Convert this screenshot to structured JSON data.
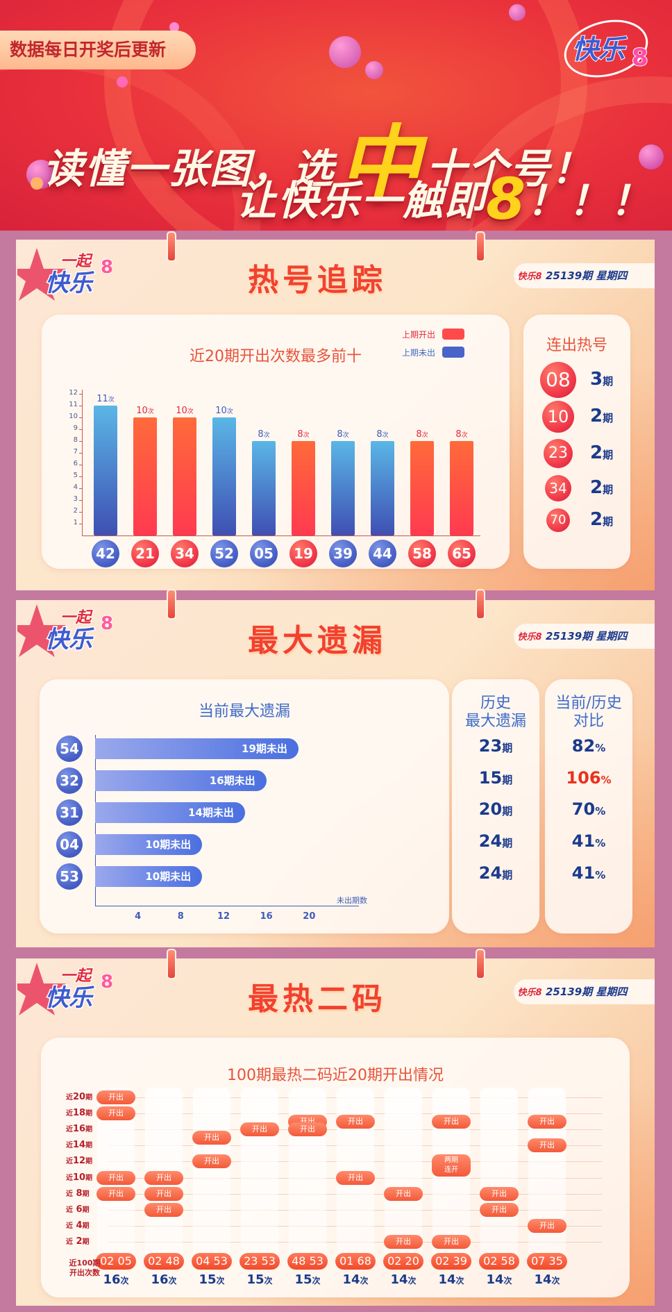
{
  "header": {
    "badge": "数据每日开奖后更新",
    "slogan_line1_pre": "读懂一张图，选",
    "slogan_line1_big": "中",
    "slogan_line1_post": "十个号！",
    "slogan_line2_pre": "让快乐一触即",
    "slogan_line2_big": "8",
    "slogan_line2_post": "！！！",
    "logo_text": "快乐8"
  },
  "logo_small": {
    "line1": "一起",
    "line2": "快乐",
    "digit": "8"
  },
  "issue": {
    "logo_text": "快乐8",
    "text": "25139期  星期四"
  },
  "colors": {
    "accent_red": "#f3412f",
    "navy": "#1b3a8c",
    "last_open": "#ff4a4a",
    "last_not_open": "#4a63c9"
  },
  "hot": {
    "title": "热号追踪",
    "chart_title": "近20期开出次数最多前十",
    "legend": [
      "上期开出",
      "上期未出"
    ],
    "unit": "次",
    "streak_title": "连出热号",
    "streak": [
      {
        "num": "08",
        "value": "3",
        "unit": "期"
      },
      {
        "num": "10",
        "value": "2",
        "unit": "期"
      },
      {
        "num": "23",
        "value": "2",
        "unit": "期"
      },
      {
        "num": "34",
        "value": "2",
        "unit": "期"
      },
      {
        "num": "70",
        "value": "2",
        "unit": "期"
      }
    ]
  },
  "miss": {
    "title": "最大遗漏",
    "chart_title": "当前最大遗漏",
    "x_unit": "未出期数",
    "col1_title": "历史\n最大遗漏",
    "col2_title": "当前/历史\n对比",
    "rows": [
      {
        "num": "54",
        "label": "19期未出",
        "hist": "23",
        "hist_unit": "期",
        "ratio": "82",
        "ratio_unit": "%"
      },
      {
        "num": "32",
        "label": "16期未出",
        "hist": "15",
        "hist_unit": "期",
        "ratio": "106",
        "ratio_unit": "%"
      },
      {
        "num": "31",
        "label": "14期未出",
        "hist": "20",
        "hist_unit": "期",
        "ratio": "70",
        "ratio_unit": "%"
      },
      {
        "num": "04",
        "label": "10期未出",
        "hist": "24",
        "hist_unit": "期",
        "ratio": "41",
        "ratio_unit": "%"
      },
      {
        "num": "53",
        "label": "10期未出",
        "hist": "24",
        "hist_unit": "期",
        "ratio": "41",
        "ratio_unit": "%"
      }
    ]
  },
  "pairs": {
    "title": "最热二码",
    "chart_title": "100期最热二码近20期开出情况",
    "y_labels": [
      {
        "pre": "近",
        "num": "20",
        "unit": "期"
      },
      {
        "pre": "近",
        "num": "18",
        "unit": "期"
      },
      {
        "pre": "近",
        "num": "16",
        "unit": "期"
      },
      {
        "pre": "近",
        "num": "14",
        "unit": "期"
      },
      {
        "pre": "近",
        "num": "12",
        "unit": "期"
      },
      {
        "pre": "近",
        "num": "10",
        "unit": "期"
      },
      {
        "pre": "近",
        "num": " 8",
        "unit": "期"
      },
      {
        "pre": "近",
        "num": " 6",
        "unit": "期"
      },
      {
        "pre": "近",
        "num": " 4",
        "unit": "期"
      },
      {
        "pre": "近",
        "num": " 2",
        "unit": "期"
      }
    ],
    "count_label": "近100期\n开出次数",
    "pill_open": "开出",
    "pill_double": "两期\n连开"
  },
  "chart_data": [
    {
      "type": "bar",
      "title": "近20期开出次数最多前十",
      "categories": [
        "42",
        "21",
        "34",
        "52",
        "05",
        "19",
        "39",
        "44",
        "58",
        "65"
      ],
      "values": [
        11,
        10,
        10,
        10,
        8,
        8,
        8,
        8,
        8,
        8
      ],
      "last_open": [
        false,
        true,
        true,
        false,
        false,
        true,
        false,
        false,
        true,
        true
      ],
      "yticks": [
        "1",
        "2",
        "3",
        "4",
        "5",
        "6",
        "7",
        "8",
        "9",
        "10",
        "11",
        "12"
      ],
      "ylim": [
        0,
        12
      ],
      "legend": [
        "上期开出",
        "上期未出"
      ]
    },
    {
      "type": "bar",
      "title": "当前最大遗漏",
      "orientation": "horizontal",
      "categories": [
        "54",
        "32",
        "31",
        "04",
        "53"
      ],
      "values": [
        19,
        16,
        14,
        10,
        10
      ],
      "xticks": [
        "4",
        "8",
        "12",
        "16",
        "20"
      ],
      "xlim": [
        0,
        24
      ],
      "xlabel": "未出期数"
    },
    {
      "type": "table",
      "title": "100期最热二码近20期开出情况",
      "pairs": [
        "02 05",
        "02 48",
        "04 53",
        "23 53",
        "48 53",
        "01 68",
        "02 20",
        "02 39",
        "02 58",
        "07 35"
      ],
      "counts": [
        "16",
        "16",
        "15",
        "15",
        "15",
        "14",
        "14",
        "14",
        "14",
        "14"
      ],
      "count_unit": "次",
      "open_periods": [
        [
          20,
          18,
          10,
          8
        ],
        [
          10,
          8,
          6
        ],
        [
          15,
          12
        ],
        [
          16
        ],
        [
          17,
          16
        ],
        [
          17,
          10
        ],
        [
          8,
          2
        ],
        [
          17,
          11.5,
          2
        ],
        [
          8,
          6
        ],
        [
          17,
          14,
          4
        ]
      ],
      "double_open_periods": [
        [],
        [],
        [],
        [],
        [],
        [],
        [],
        [
          11.5
        ],
        [],
        []
      ]
    }
  ]
}
